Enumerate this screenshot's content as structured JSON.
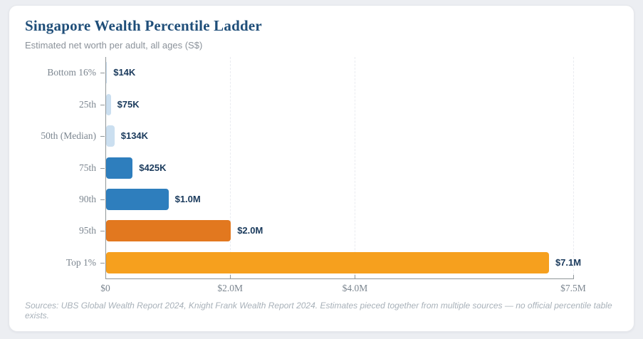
{
  "header": {
    "title": "Singapore Wealth Percentile Ladder",
    "subtitle": "Estimated net worth per adult, all ages (S$)"
  },
  "footer": {
    "text": "Sources: UBS Global Wealth Report 2024, Knight Frank Wealth Report 2024. Estimates pieced together from multiple sources — no official percentile table exists."
  },
  "colors": {
    "page_background": "#eceef2",
    "card_background": "#ffffff",
    "title_navy": "#1f4e79",
    "subtitle_gray": "#8b929a",
    "category_label_gray": "#7c8690",
    "value_label_navy": "#1a3a5c",
    "axis_gray": "#909699",
    "gridline_gray": "#e9ebf0",
    "footer_gray": "#a8b1b9",
    "light_blue": "#cbdff0",
    "mid_blue": "#2e7ebd",
    "dark_orange": "#e2781f",
    "amber": "#f6a01e"
  },
  "chart_data": {
    "type": "bar",
    "orientation": "horizontal",
    "title": "Singapore Wealth Percentile Ladder",
    "subtitle": "Estimated net worth per adult, all ages (S$)",
    "unit": "S$",
    "categories": [
      "Bottom 16%",
      "25th",
      "50th (Median)",
      "75th",
      "90th",
      "95th",
      "Top 1%"
    ],
    "values": [
      14000,
      75000,
      134000,
      425000,
      1000000,
      2000000,
      7100000
    ],
    "value_labels": [
      "$14K",
      "$75K",
      "$134K",
      "$425K",
      "$1.0M",
      "$2.0M",
      "$7.1M"
    ],
    "bar_colors": [
      "#cbdff0",
      "#cbdff0",
      "#cbdff0",
      "#2e7ebd",
      "#2e7ebd",
      "#e2781f",
      "#f6a01e"
    ],
    "xlim": [
      0,
      7500000
    ],
    "x_ticks": [
      0,
      2000000,
      4000000,
      7500000
    ],
    "x_tick_labels": [
      "$0",
      "$2.0M",
      "$4.0M",
      "$7.5M"
    ],
    "gridlines_at": [
      2000000,
      4000000,
      7500000
    ],
    "grid": "dashed-vertical",
    "legend": "none"
  }
}
